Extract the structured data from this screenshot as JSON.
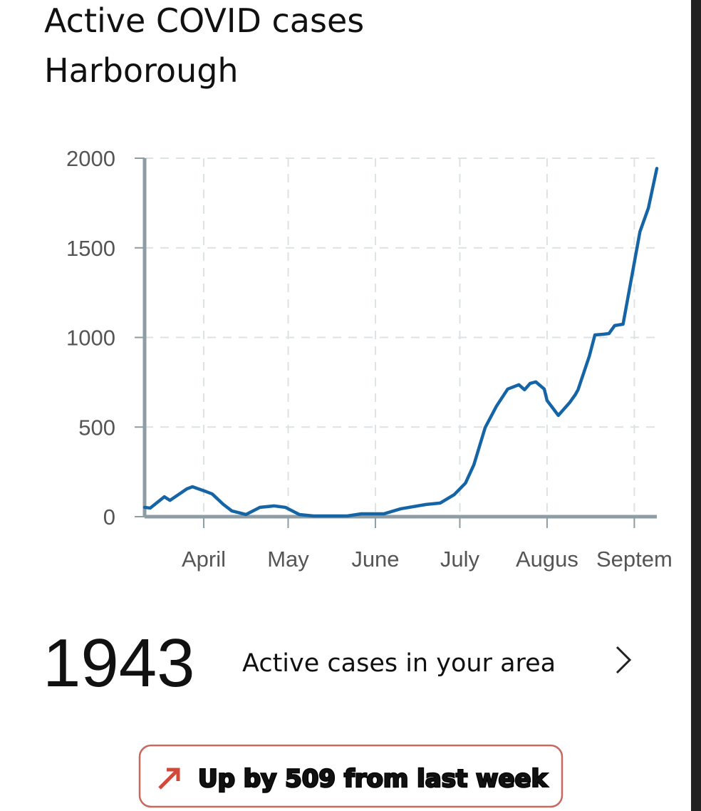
{
  "chart_data": {
    "type": "line",
    "title": "Active COVID cases",
    "subtitle": "Harborough",
    "x": [
      0,
      2,
      7,
      9,
      15,
      17,
      22,
      24,
      28,
      31,
      36,
      41,
      46,
      50,
      55,
      60,
      72,
      77,
      85,
      91,
      100,
      105,
      110,
      114,
      117,
      121,
      125,
      129,
      133,
      135,
      137,
      139,
      142,
      143,
      147,
      151,
      153,
      154,
      158,
      160,
      163,
      165,
      167,
      170,
      173,
      176,
      179,
      182
    ],
    "series": [
      {
        "color": "#1565a6",
        "values": [
          52,
          48,
          111,
          91,
          155,
          167,
          139,
          127,
          68,
          32,
          12,
          52,
          60,
          52,
          12,
          4,
          4,
          16,
          16,
          44,
          68,
          76,
          123,
          187,
          290,
          497,
          616,
          712,
          736,
          708,
          744,
          752,
          712,
          648,
          565,
          636,
          680,
          708,
          895,
          1014,
          1018,
          1022,
          1066,
          1074,
          1332,
          1590,
          1722,
          1943
        ]
      }
    ],
    "xlim": [
      0,
      182
    ],
    "xticks": [
      {
        "value": 21,
        "label": "April"
      },
      {
        "value": 51,
        "label": "May"
      },
      {
        "value": 82,
        "label": "June"
      },
      {
        "value": 112,
        "label": "July"
      },
      {
        "value": 143,
        "label": "Augus"
      },
      {
        "value": 174,
        "label": "Septem"
      }
    ],
    "ylim": [
      0,
      2000
    ],
    "yticks": [
      0,
      500,
      1000,
      1500,
      2000
    ],
    "grid": true
  },
  "summary": {
    "value": 1943,
    "label": "Active cases in your area"
  },
  "badge": {
    "text": "Up by 509 from last week"
  }
}
